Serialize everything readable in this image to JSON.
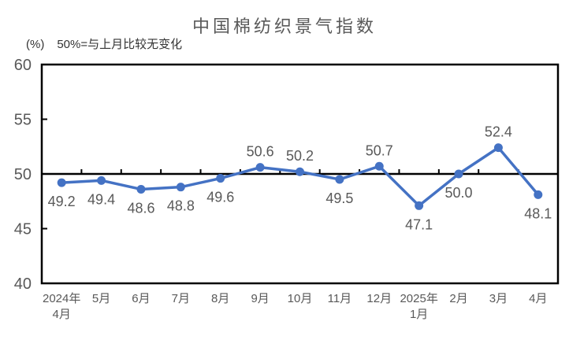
{
  "title": "中国棉纺织景气指数",
  "subtitle": {
    "unit": "(%)",
    "note": "50%=与上月比较无变化"
  },
  "colors": {
    "line": "#4472C4",
    "marker": "#4472C4",
    "axis_line": "#000000",
    "text": "#595959",
    "subtitle_text": "#333333",
    "background": "#FFFFFF"
  },
  "chart_data": {
    "type": "line",
    "title": "中国棉纺织景气指数",
    "unit_note": "(%) 50%=与上月比较无变化",
    "categories": [
      "2024年4月",
      "5月",
      "6月",
      "7月",
      "8月",
      "9月",
      "10月",
      "11月",
      "12月",
      "2025年1月",
      "2月",
      "3月",
      "4月"
    ],
    "category_tick_lines": [
      [
        "2024年",
        "4月"
      ],
      [
        "5月"
      ],
      [
        "6月"
      ],
      [
        "7月"
      ],
      [
        "8月"
      ],
      [
        "9月"
      ],
      [
        "10月"
      ],
      [
        "11月"
      ],
      [
        "12月"
      ],
      [
        "2025年",
        "1月"
      ],
      [
        "2月"
      ],
      [
        "3月"
      ],
      [
        "4月"
      ]
    ],
    "series": [
      {
        "name": "中国棉纺织景气指数",
        "values": [
          49.2,
          49.4,
          48.6,
          48.8,
          49.6,
          50.6,
          50.2,
          49.5,
          50.7,
          47.1,
          50.0,
          52.4,
          48.1
        ],
        "value_labels": [
          "49.2",
          "49.4",
          "48.6",
          "48.8",
          "49.6",
          "50.6",
          "50.2",
          "49.5",
          "50.7",
          "47.1",
          "50.0",
          "52.4",
          "48.1"
        ]
      }
    ],
    "xlabel": "",
    "ylabel": "(%)",
    "ylim": [
      40,
      60
    ],
    "yticks": [
      40,
      45,
      50,
      55,
      60
    ],
    "baseline_value": 50,
    "grid": false,
    "legend": "none",
    "data_labels": "on"
  }
}
